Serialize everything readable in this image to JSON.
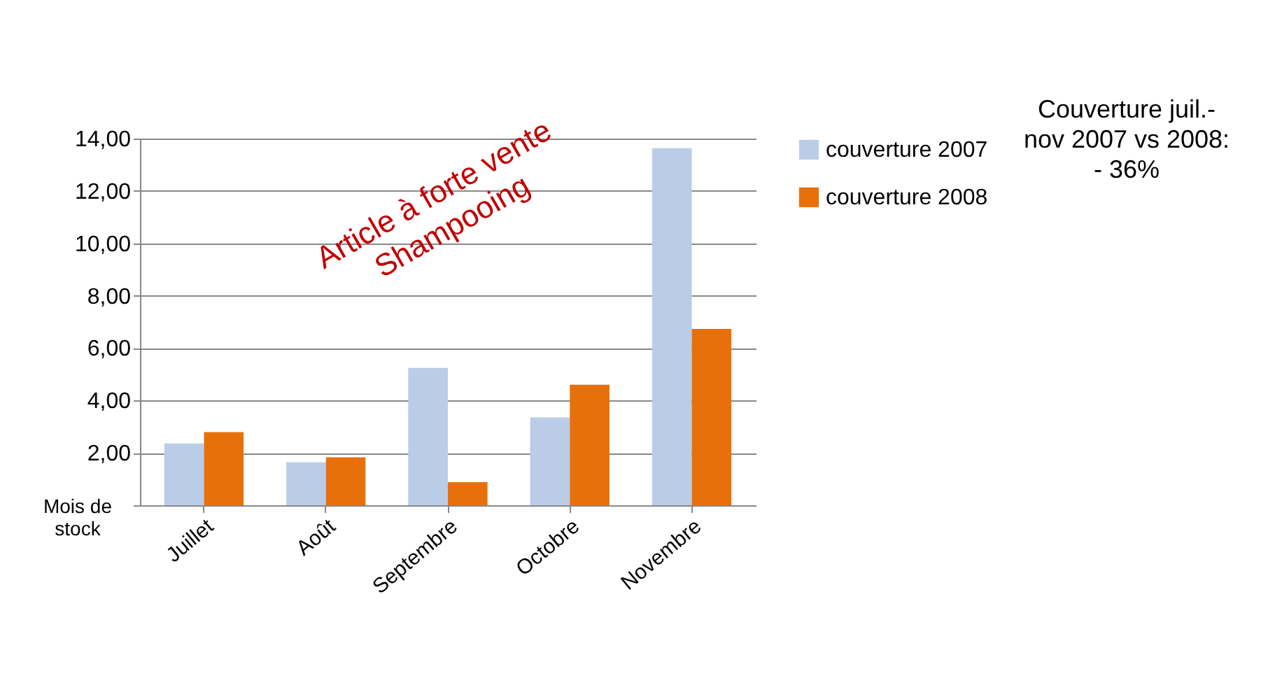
{
  "chart_data": {
    "type": "bar",
    "categories": [
      "Juillet",
      "Août",
      "Septembre",
      "Octobre",
      "Novembre"
    ],
    "series": [
      {
        "name": "couverture 2007",
        "color": "#b9cde8",
        "values": [
          2.36,
          1.64,
          5.24,
          3.35,
          13.63
        ]
      },
      {
        "name": "couverture 2008",
        "color": "#e8700a",
        "values": [
          2.79,
          1.83,
          0.88,
          4.6,
          6.73
        ]
      }
    ],
    "ylabel": "Mois de stock",
    "ylim": [
      0,
      14
    ],
    "yticks": [
      {
        "value": 0,
        "label": null
      },
      {
        "value": 2,
        "label": "2,00"
      },
      {
        "value": 4,
        "label": "4,00"
      },
      {
        "value": 6,
        "label": "6,00"
      },
      {
        "value": 8,
        "label": "8,00"
      },
      {
        "value": 10,
        "label": "10,00"
      },
      {
        "value": 12,
        "label": "12,00"
      },
      {
        "value": 14,
        "label": "14,00"
      }
    ],
    "grid": "y",
    "legend": "right",
    "annotations": [
      "Article à forte vente Shampooing",
      "Couverture juil.- nov 2007 vs 2008: - 36%"
    ]
  }
}
